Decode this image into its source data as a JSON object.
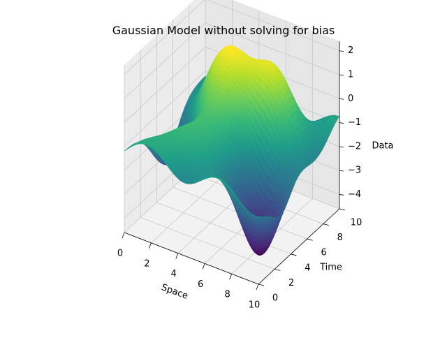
{
  "chart_data": {
    "type": "surface3d",
    "title": "Gaussian Model without solving for bias",
    "xlabel": "Space",
    "ylabel": "Time",
    "zlabel": "Data",
    "xlim": [
      0,
      10
    ],
    "ylim": [
      0,
      10
    ],
    "zlim": [
      -4.6,
      2.4
    ],
    "x_ticks": [
      "0",
      "2",
      "4",
      "6",
      "8",
      "10"
    ],
    "y_ticks": [
      "0",
      "2",
      "4",
      "6",
      "8",
      "10"
    ],
    "z_ticks": [
      "2",
      "1",
      "0",
      "−1",
      "−2",
      "−3",
      "−4"
    ],
    "colormap": "viridis",
    "grid": true,
    "grid_resolution": 60,
    "surface_features": [
      {
        "x": 4.0,
        "y": 6.5,
        "peak": 2.3
      },
      {
        "x": 7.0,
        "y": 7.0,
        "peak": 0.6
      },
      {
        "x": 3.0,
        "y": 2.0,
        "peak": -0.8
      },
      {
        "x": 8.5,
        "y": 3.0,
        "trough": -4.5
      },
      {
        "x": 0.0,
        "y": 5.0,
        "trough": -3.2
      }
    ]
  }
}
